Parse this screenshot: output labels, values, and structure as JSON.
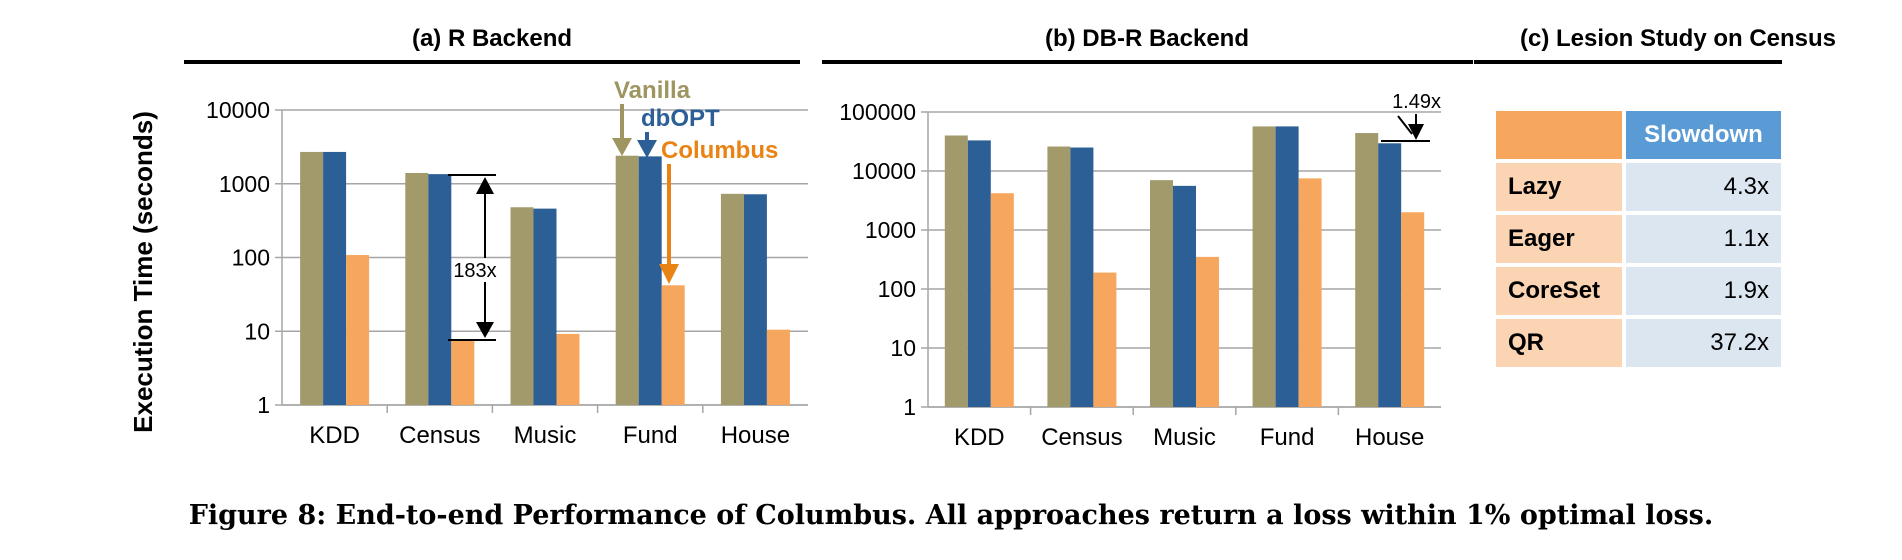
{
  "colors": {
    "vanilla": "#a39a6c",
    "dbopt": "#2c5f96",
    "columbus": "#f7a75d",
    "grid": "#a6a6a6",
    "annot_vanilla": "#9f9560",
    "annot_dbopt": "#2c5f96",
    "annot_columbus": "#e98313"
  },
  "ylabel": "Execution Time (seconds)",
  "caption": "Figure 8: End-to-end Performance of Columbus. All approaches return a loss within 1% optimal loss.",
  "chart_data": [
    {
      "type": "bar",
      "title": "(a) R Backend",
      "ylabel": "Execution Time (seconds)",
      "yscale": "log",
      "ylim": [
        1,
        10000
      ],
      "yticks": [
        "1",
        "10",
        "100",
        "1000",
        "10000"
      ],
      "categories": [
        "KDD",
        "Census",
        "Music",
        "Fund",
        "House"
      ],
      "series": [
        {
          "name": "Vanilla",
          "values": [
            2700,
            1400,
            480,
            2400,
            730
          ]
        },
        {
          "name": "dbOPT",
          "values": [
            2700,
            1350,
            460,
            2350,
            720
          ]
        },
        {
          "name": "Columbus",
          "values": [
            108,
            7.5,
            9.2,
            42,
            10.5
          ]
        }
      ],
      "annotations": [
        {
          "text": "183x",
          "category": "Census"
        }
      ],
      "legend": "annotated arrows over Fund bars"
    },
    {
      "type": "bar",
      "title": "(b) DB-R Backend",
      "yscale": "log",
      "ylim": [
        1,
        100000
      ],
      "yticks": [
        "1",
        "10",
        "100",
        "1000",
        "10000",
        "100000"
      ],
      "categories": [
        "KDD",
        "Census",
        "Music",
        "Fund",
        "House"
      ],
      "series": [
        {
          "name": "Vanilla",
          "values": [
            40000,
            26000,
            7000,
            57000,
            44000
          ]
        },
        {
          "name": "dbOPT",
          "values": [
            33000,
            25000,
            5600,
            57000,
            29500
          ]
        },
        {
          "name": "Columbus",
          "values": [
            4200,
            190,
            350,
            7500,
            2000
          ]
        }
      ],
      "annotations": [
        {
          "text": "1.49x",
          "category": "House"
        }
      ]
    },
    {
      "type": "table",
      "title": "(c) Lesion Study on Census",
      "header": [
        "",
        "Slowdown"
      ],
      "rows": [
        {
          "name": "Lazy",
          "value": "4.3x"
        },
        {
          "name": "Eager",
          "value": "1.1x"
        },
        {
          "name": "CoreSet",
          "value": "1.9x"
        },
        {
          "name": "QR",
          "value": "37.2x"
        }
      ]
    }
  ]
}
